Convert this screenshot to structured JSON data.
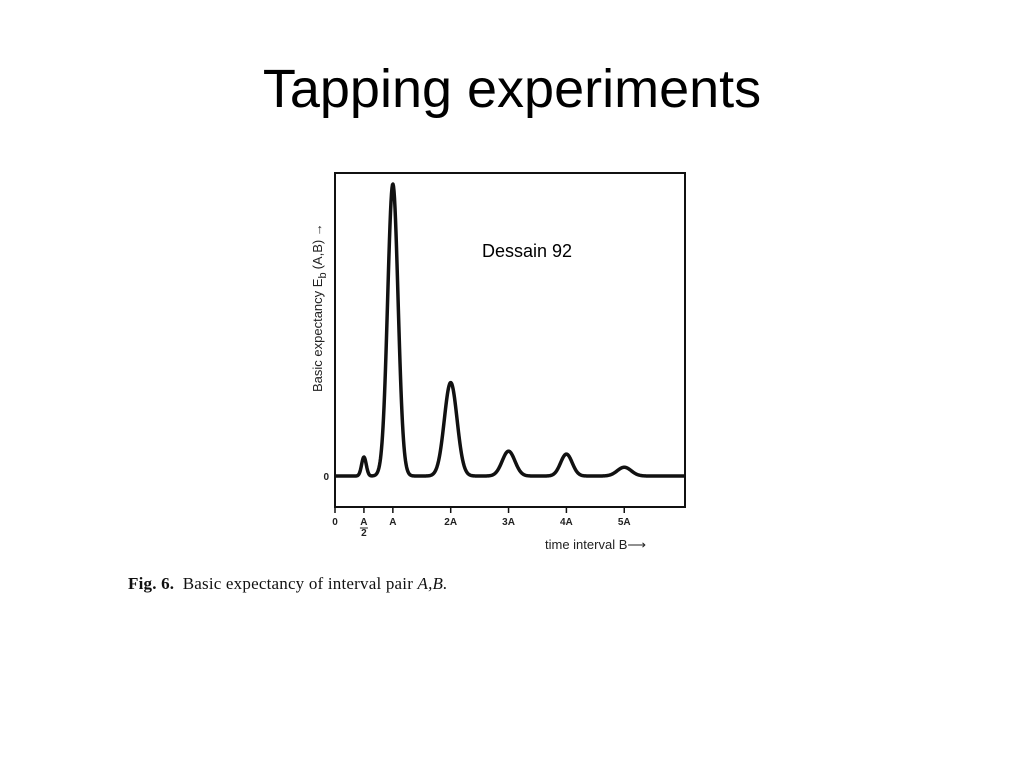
{
  "slide": {
    "title": "Tapping experiments",
    "annotation": "Dessain 92",
    "caption_fig": "Fig. 6.",
    "caption_text": "Basic expectancy of interval pair",
    "caption_vars": "A,B."
  },
  "chart_data": {
    "type": "line",
    "ylabel_main": "Basic expectancy E",
    "ylabel_sub": "b",
    "ylabel_tail": "(A,B) →",
    "xlabel": "time  interval  B⟶",
    "y_ticks": [
      {
        "value": 0,
        "label": "0"
      }
    ],
    "x_ticks": [
      {
        "value": 0,
        "label": "0"
      },
      {
        "value": 0.5,
        "label": "A",
        "label2": "2"
      },
      {
        "value": 1,
        "label": "A"
      },
      {
        "value": 2,
        "label": "2A"
      },
      {
        "value": 3,
        "label": "3A"
      },
      {
        "value": 4,
        "label": "4A"
      },
      {
        "value": 5,
        "label": "5A"
      }
    ],
    "xlim": [
      0,
      6.05
    ],
    "ylim": [
      0,
      1.05
    ],
    "baseline": 0,
    "peaks": [
      {
        "x": 0.5,
        "height": 0.065,
        "width": 0.04
      },
      {
        "x": 1.0,
        "height": 1.0,
        "width": 0.09
      },
      {
        "x": 2.0,
        "height": 0.32,
        "width": 0.11
      },
      {
        "x": 3.0,
        "height": 0.085,
        "width": 0.11
      },
      {
        "x": 4.0,
        "height": 0.075,
        "width": 0.1
      },
      {
        "x": 5.0,
        "height": 0.03,
        "width": 0.12
      }
    ]
  }
}
